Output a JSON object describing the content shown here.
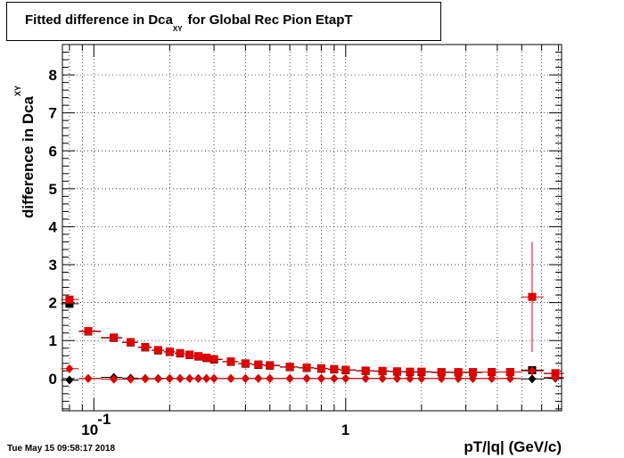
{
  "chart_data": {
    "type": "scatter",
    "title_main": "Fitted difference in Dca",
    "title_sub": "XY",
    "title_tail": "for Global Rec Pion EtapT",
    "ylabel_main": "difference in Dca",
    "ylabel_sub": "XY",
    "xlabel": "pT/|q| (GeV/c)",
    "xscale": "log",
    "xlim": [
      0.075,
      7.2
    ],
    "ylim": [
      -0.85,
      8.8
    ],
    "grid": true,
    "xtick_labels": [
      {
        "v": 0.1,
        "text": "10",
        "sup": "-1"
      },
      {
        "v": 1,
        "text": "1",
        "sup": ""
      }
    ],
    "yticks": [
      0,
      1,
      2,
      3,
      4,
      5,
      6,
      7,
      8
    ],
    "series": [
      {
        "marker": "square",
        "color": "#000000",
        "x": [
          0.08,
          0.095,
          0.12,
          0.14,
          0.16,
          0.18,
          0.2,
          0.22,
          0.24,
          0.26,
          0.28,
          0.3,
          0.35,
          0.4,
          0.45,
          0.5,
          0.6,
          0.7,
          0.8,
          0.9,
          1.0,
          1.2,
          1.4,
          1.6,
          1.8,
          2.0,
          2.4,
          2.8,
          3.2,
          3.8,
          4.5,
          5.5,
          6.8
        ],
        "y": [
          1.97,
          1.24,
          1.07,
          0.95,
          0.82,
          0.74,
          0.7,
          0.66,
          0.62,
          0.58,
          0.54,
          0.5,
          0.44,
          0.39,
          0.36,
          0.34,
          0.3,
          0.28,
          0.26,
          0.24,
          0.22,
          0.2,
          0.19,
          0.18,
          0.17,
          0.17,
          0.16,
          0.16,
          0.16,
          0.17,
          0.17,
          0.22,
          0.13
        ]
      },
      {
        "marker": "square",
        "color": "#e00000",
        "x": [
          0.08,
          0.095,
          0.12,
          0.14,
          0.16,
          0.18,
          0.2,
          0.22,
          0.24,
          0.26,
          0.28,
          0.3,
          0.35,
          0.4,
          0.45,
          0.5,
          0.6,
          0.7,
          0.8,
          0.9,
          1.0,
          1.2,
          1.4,
          1.6,
          1.8,
          2.0,
          2.4,
          2.8,
          3.2,
          3.8,
          4.5,
          5.5,
          6.8
        ],
        "y": [
          2.08,
          1.25,
          1.08,
          0.96,
          0.83,
          0.75,
          0.71,
          0.67,
          0.63,
          0.59,
          0.55,
          0.51,
          0.45,
          0.4,
          0.37,
          0.35,
          0.31,
          0.29,
          0.27,
          0.25,
          0.23,
          0.21,
          0.2,
          0.19,
          0.18,
          0.18,
          0.17,
          0.17,
          0.17,
          0.17,
          0.17,
          2.15,
          0.14
        ],
        "yerr": [
          0.05,
          0.03,
          0.03,
          0.02,
          0.02,
          0.02,
          0.02,
          0.02,
          0.02,
          0.02,
          0.02,
          0.02,
          0.02,
          0.02,
          0.02,
          0.02,
          0.02,
          0.02,
          0.02,
          0.02,
          0.02,
          0.02,
          0.02,
          0.02,
          0.02,
          0.02,
          0.02,
          0.03,
          0.03,
          0.04,
          0.05,
          1.45,
          0.08
        ]
      },
      {
        "marker": "diamond",
        "color": "#000000",
        "x": [
          0.08,
          0.095,
          0.12,
          0.14,
          0.16,
          0.18,
          0.2,
          0.22,
          0.24,
          0.26,
          0.28,
          0.3,
          0.35,
          0.4,
          0.45,
          0.5,
          0.6,
          0.7,
          0.8,
          0.9,
          1.0,
          1.2,
          1.4,
          1.6,
          1.8,
          2.0,
          2.4,
          2.8,
          3.2,
          3.8,
          4.5,
          5.5,
          6.8
        ],
        "y": [
          -0.04,
          0.0,
          0.03,
          0.01,
          0.0,
          0.0,
          0.0,
          0.0,
          0.0,
          0.0,
          0.0,
          0.0,
          0.0,
          0.0,
          0.0,
          0.0,
          0.0,
          0.0,
          0.0,
          0.0,
          0.0,
          0.0,
          0.0,
          0.0,
          0.0,
          0.0,
          0.0,
          0.0,
          0.0,
          0.0,
          0.0,
          -0.01,
          0.01
        ]
      },
      {
        "marker": "diamond",
        "color": "#e00000",
        "x": [
          0.08,
          0.095,
          0.12,
          0.14,
          0.16,
          0.18,
          0.2,
          0.22,
          0.24,
          0.26,
          0.28,
          0.3,
          0.35,
          0.4,
          0.45,
          0.5,
          0.6,
          0.7,
          0.8,
          0.9,
          1.0,
          1.2,
          1.4,
          1.6,
          1.8,
          2.0,
          2.4,
          2.8,
          3.2,
          3.8,
          4.5,
          5.5,
          6.8
        ],
        "y": [
          0.26,
          0.0,
          -0.02,
          -0.02,
          -0.01,
          -0.01,
          0.0,
          0.0,
          0.0,
          0.0,
          0.0,
          0.0,
          0.0,
          0.0,
          0.0,
          0.0,
          0.0,
          0.0,
          0.0,
          0.0,
          0.0,
          0.0,
          0.0,
          0.0,
          0.0,
          0.0,
          0.0,
          0.0,
          0.0,
          0.0,
          0.0,
          0.2,
          0.03
        ]
      }
    ]
  },
  "timestamp": "Tue May 15 09:58:17 2018"
}
